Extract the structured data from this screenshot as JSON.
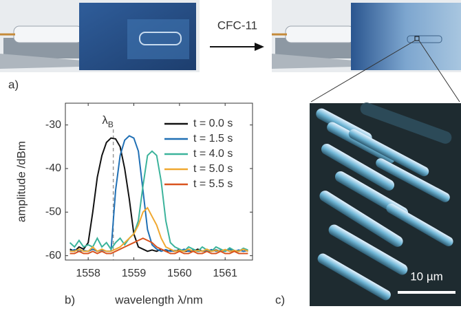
{
  "labels": {
    "a": "a)",
    "b": "b)",
    "c": "c)"
  },
  "arrow_text": "CFC-11",
  "scale_bar": "10 µm",
  "chart_data": {
    "type": "line",
    "xlabel": "wavelength λ/nm",
    "ylabel": "amplitude /dBm",
    "xlim": [
      1557.5,
      1561.6
    ],
    "ylim": [
      -61,
      -25
    ],
    "xticks": [
      1558,
      1559,
      1560,
      1561
    ],
    "yticks": [
      -60,
      -50,
      -40,
      -30
    ],
    "legend": "upper right",
    "annotation": {
      "text": "λ",
      "sub": "B",
      "x": 1558.55
    },
    "x": [
      1557.6,
      1557.7,
      1557.8,
      1557.9,
      1558.0,
      1558.1,
      1558.2,
      1558.3,
      1558.4,
      1558.5,
      1558.6,
      1558.7,
      1558.8,
      1558.9,
      1559.0,
      1559.1,
      1559.2,
      1559.3,
      1559.4,
      1559.5,
      1559.6,
      1559.7,
      1559.8,
      1559.9,
      1560.0,
      1560.1,
      1560.2,
      1560.3,
      1560.4,
      1560.5,
      1560.6,
      1560.7,
      1560.8,
      1560.9,
      1561.0,
      1561.1,
      1561.2,
      1561.3,
      1561.4,
      1561.5
    ],
    "series": [
      {
        "name": "t = 0.0 s",
        "color": "#111111",
        "values": [
          -58.5,
          -59,
          -58,
          -58.5,
          -57,
          -50,
          -42,
          -37,
          -34,
          -33,
          -33.2,
          -35,
          -40,
          -47,
          -55,
          -58,
          -58.5,
          -59,
          -58.7,
          -59,
          -58.5,
          -59,
          -58.8,
          -59,
          -58.6,
          -59,
          -58.9,
          -59,
          -58.5,
          -59,
          -58.8,
          -59,
          -58.7,
          -59,
          -58.6,
          -59,
          -58.9,
          -59,
          -58.5,
          -59
        ]
      },
      {
        "name": "t = 1.5 s",
        "color": "#1f6fb4",
        "values": [
          -59,
          -58.6,
          -59,
          -58.8,
          -59,
          -58.5,
          -59,
          -58.7,
          -59,
          -59,
          -45,
          -37,
          -33.5,
          -32.5,
          -33,
          -36,
          -45,
          -54,
          -57.5,
          -58.5,
          -59,
          -58.6,
          -59,
          -58.8,
          -59,
          -58.5,
          -59,
          -58.7,
          -59,
          -58.9,
          -59,
          -58.6,
          -59,
          -58.8,
          -59,
          -58.5,
          -59,
          -58.7,
          -59,
          -58.8
        ]
      },
      {
        "name": "t = 4.0 s",
        "color": "#3bb39b",
        "values": [
          -57,
          -58,
          -56.5,
          -58,
          -57.5,
          -58,
          -56,
          -58,
          -57,
          -58.5,
          -57,
          -56,
          -57.5,
          -56,
          -55,
          -52,
          -44,
          -37,
          -36,
          -37,
          -43,
          -52,
          -57,
          -58,
          -58.5,
          -59,
          -58,
          -58.5,
          -59,
          -58,
          -58.7,
          -59,
          -58,
          -58.5,
          -59,
          -58.2,
          -58.8,
          -59,
          -58.3,
          -58.7
        ]
      },
      {
        "name": "t = 5.0 s",
        "color": "#f0a830",
        "values": [
          -59,
          -59,
          -58.5,
          -59,
          -59,
          -58,
          -59,
          -58.5,
          -59,
          -59,
          -58.5,
          -58,
          -57,
          -56,
          -55,
          -53,
          -50,
          -49,
          -51,
          -53,
          -56,
          -58,
          -58.5,
          -59,
          -58.8,
          -59,
          -58.5,
          -59,
          -58.8,
          -59,
          -58.5,
          -59,
          -58.8,
          -59,
          -58.6,
          -59,
          -58.8,
          -59,
          -58.5,
          -59
        ]
      },
      {
        "name": "t = 5.5 s",
        "color": "#d9531e",
        "values": [
          -59.5,
          -59.5,
          -59,
          -59.5,
          -59.5,
          -59,
          -59.5,
          -59,
          -59.5,
          -59.5,
          -59,
          -58.5,
          -58,
          -57.5,
          -57,
          -56.5,
          -56,
          -56.5,
          -57,
          -58,
          -58.5,
          -59,
          -59.5,
          -59.5,
          -59,
          -59.5,
          -59.5,
          -59,
          -59.5,
          -59.5,
          -59,
          -59.5,
          -59.5,
          -59,
          -59.5,
          -59.5,
          -59,
          -59.5,
          -59.5,
          -59.5
        ]
      }
    ]
  }
}
